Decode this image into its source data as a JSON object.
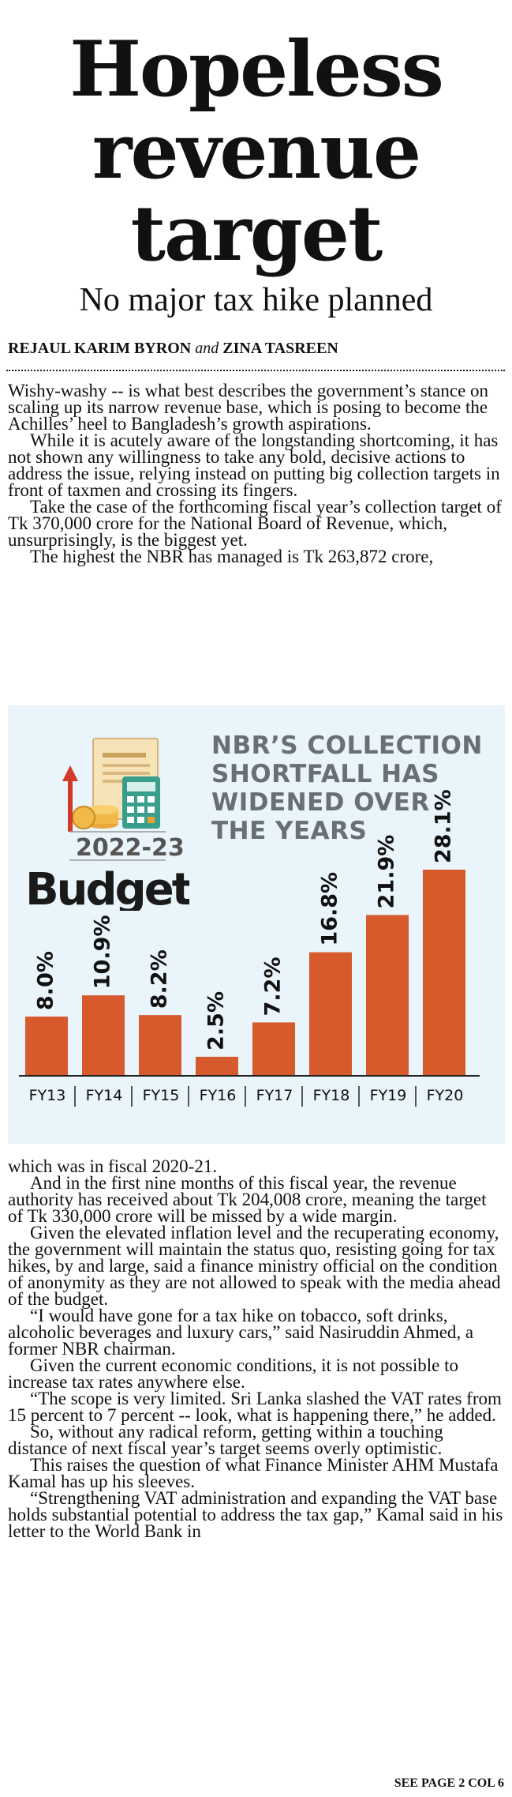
{
  "headline": {
    "line1": "Hopeless",
    "line2": "revenue",
    "line3": "target",
    "subheadline": "No major tax hike planned"
  },
  "byline": {
    "author1": "REJAUL KARIM BYRON",
    "conjunction": "and",
    "author2": "ZINA TASREEN"
  },
  "article_top": [
    "Wishy-washy -- is what best describes the government’s stance on scaling up its narrow revenue base, which is posing to become the Achilles’ heel to Bangladesh’s growth aspirations.",
    "While it is acutely aware of the longstanding shortcoming, it has not shown any willingness to take any bold, decisive actions to address the issue, relying instead on putting big collection targets in front of taxmen and crossing its fingers.",
    "Take the case of the forthcoming fiscal year’s collection target of Tk 370,000 crore for the National Board of Revenue, which, unsurprisingly, is the biggest yet.",
    "The highest the NBR has managed is Tk 263,872 crore,"
  ],
  "budget_logo": {
    "year": "2022-23",
    "word": "Budget"
  },
  "chart_data": {
    "type": "bar",
    "title": "NBR’S COLLECTION SHORTFALL HAS WIDENED OVER THE YEARS",
    "title_lines": [
      "NBR’S COLLECTION",
      "SHORTFALL HAS",
      "WIDENED OVER",
      "THE YEARS"
    ],
    "categories": [
      "FY13",
      "FY14",
      "FY15",
      "FY16",
      "FY17",
      "FY18",
      "FY19",
      "FY20"
    ],
    "values": [
      8.0,
      10.9,
      8.2,
      2.5,
      7.2,
      16.8,
      21.9,
      28.1
    ],
    "data_labels": [
      "8.0%",
      "10.9%",
      "8.2%",
      "2.5%",
      "7.2%",
      "16.8%",
      "21.9%",
      "28.1%"
    ],
    "unit": "%",
    "bar_color": "#d65a2c",
    "background": "#e9f4fb",
    "grid": false,
    "legend": "none"
  },
  "article_bottom": [
    "which was in fiscal 2020-21.",
    "And in the first nine months of this fiscal year, the revenue authority has received about Tk 204,008 crore, meaning the target of Tk 330,000 crore will be missed by a wide margin.",
    "Given the elevated inflation level and the recuperating economy, the government will maintain the status quo, resisting going for tax hikes, by and large, said a finance ministry official on the condition of anonymity as they are not allowed to speak with the media ahead of the budget.",
    "“I would have gone for a tax hike on tobacco, soft drinks, alcoholic beverages and luxury cars,” said Nasiruddin Ahmed, a former NBR chairman.",
    "Given the current economic conditions, it is not possible to increase tax rates anywhere else.",
    "“The scope is very limited. Sri Lanka slashed the VAT rates from 15 percent to 7 percent -- look, what is happening there,” he added.",
    "So, without any radical reform, getting within a touching distance of next fiscal year’s target seems overly optimistic.",
    "This raises the question of what Finance Minister AHM Mustafa Kamal has up his sleeves.",
    "“Strengthening VAT administration and expanding the VAT base holds substantial potential to address the tax gap,” Kamal said in his letter to the World Bank in"
  ],
  "footer": "SEE PAGE 2 COL 6"
}
